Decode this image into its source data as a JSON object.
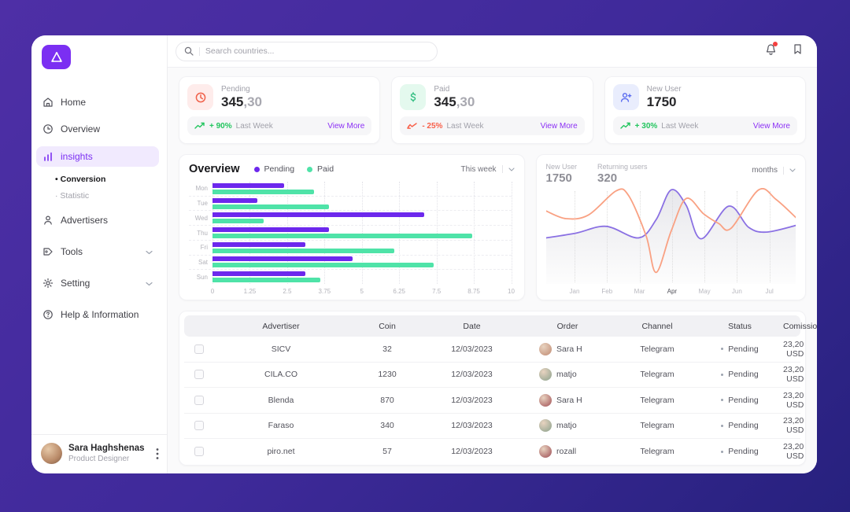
{
  "topbar": {
    "search_placeholder": "Search countries...",
    "icons": [
      "bell-icon",
      "bookmark-icon"
    ]
  },
  "sidebar": {
    "items": [
      {
        "label": "Home"
      },
      {
        "label": "Overview"
      },
      {
        "label": "insights",
        "active": true
      },
      {
        "label": "Advertisers"
      },
      {
        "label": "Tools",
        "expandable": true
      },
      {
        "label": "Setting",
        "expandable": true
      },
      {
        "label": "Help & Information"
      }
    ],
    "sub_items": [
      {
        "label": "Conversion",
        "bullet": "•",
        "active": true
      },
      {
        "label": "Statistic",
        "bullet": "·",
        "active": false
      }
    ],
    "profile": {
      "name": "Sara Haghshenas",
      "role": "Product Designer"
    }
  },
  "stat_cards": [
    {
      "label": "Pending",
      "value_main": "345",
      "value_decimal": ",30",
      "trend": "+ 90%",
      "trend_dir": "up",
      "period": "Last Week",
      "action": "View More"
    },
    {
      "label": "Paid",
      "value_main": "345",
      "value_decimal": ",30",
      "trend": "- 25%",
      "trend_dir": "down",
      "period": "Last Week",
      "action": "View More"
    },
    {
      "label": "New User",
      "value_main": "1750",
      "value_decimal": "",
      "trend": "+ 30%",
      "trend_dir": "up",
      "period": "Last Week",
      "action": "View More"
    }
  ],
  "chart_data": [
    {
      "type": "bar",
      "orientation": "horizontal",
      "title": "Overview",
      "categories": [
        "Mon",
        "Tue",
        "Wed",
        "Thu",
        "Fri",
        "Sat",
        "Sun"
      ],
      "series": [
        {
          "name": "Pending",
          "color": "#6d28ed",
          "values": [
            2.4,
            1.5,
            7.1,
            3.9,
            3.1,
            4.7,
            3.1
          ]
        },
        {
          "name": "Paid",
          "color": "#4fe3a8",
          "values": [
            3.4,
            3.9,
            1.7,
            8.7,
            6.1,
            7.4,
            3.6
          ]
        }
      ],
      "xlim": [
        0,
        10
      ],
      "x_ticks": [
        "0",
        "1.25",
        "2.5",
        "3.75",
        "5",
        "6.25",
        "7.5",
        "8.75",
        "10"
      ],
      "grid": "dotted",
      "period_selector": "This week"
    },
    {
      "type": "line",
      "stats": [
        {
          "label": "New User",
          "value": "1750"
        },
        {
          "label": "Returning users",
          "value": "320"
        }
      ],
      "x_labels": [
        "Jan",
        "Feb",
        "Mar",
        "Apr",
        "May",
        "Jun",
        "Jul"
      ],
      "highlight_label": "Apr",
      "period_selector": "months",
      "series": [
        {
          "name": "New User",
          "color": "#8a70e3",
          "fill": "gray-gradient",
          "points": [
            [
              0,
              52
            ],
            [
              12,
              47
            ],
            [
              24,
              40
            ],
            [
              37,
              52
            ],
            [
              44,
              33
            ],
            [
              50,
              2
            ],
            [
              56,
              18
            ],
            [
              62,
              53
            ],
            [
              73,
              19
            ],
            [
              81,
              41
            ],
            [
              88,
              46
            ],
            [
              100,
              39
            ]
          ]
        },
        {
          "name": "Returning users",
          "color": "#f9a183",
          "fill": "none",
          "points": [
            [
              0,
              24
            ],
            [
              8,
              32
            ],
            [
              17,
              28
            ],
            [
              28,
              3
            ],
            [
              33,
              8
            ],
            [
              40,
              50
            ],
            [
              44,
              88
            ],
            [
              50,
              45
            ],
            [
              56,
              11
            ],
            [
              63,
              27
            ],
            [
              69,
              37
            ],
            [
              74,
              42
            ],
            [
              85,
              2
            ],
            [
              92,
              12
            ],
            [
              100,
              31
            ]
          ]
        }
      ]
    }
  ],
  "table": {
    "headers": [
      "Advertiser",
      "Coin",
      "Date",
      "Order",
      "Channel",
      "Status",
      "Comission"
    ],
    "rows": [
      {
        "advertiser": "SICV",
        "coin": "32",
        "date": "12/03/2023",
        "order": "Sara H",
        "avatar_color": "#c08a72",
        "channel": "Telegram",
        "status": "Pending",
        "commission": "23,20 USD"
      },
      {
        "advertiser": "CILA.CO",
        "coin": "1230",
        "date": "12/03/2023",
        "order": "matjo",
        "avatar_color": "#8aa18c",
        "channel": "Telegram",
        "status": "Pending",
        "commission": "23,20 USD"
      },
      {
        "advertiser": "Blenda",
        "coin": "870",
        "date": "12/03/2023",
        "order": "Sara H",
        "avatar_color": "#a14e54",
        "channel": "Telegram",
        "status": "Pending",
        "commission": "23,20 USD"
      },
      {
        "advertiser": "Faraso",
        "coin": "340",
        "date": "12/03/2023",
        "order": "matjo",
        "avatar_color": "#8aa18c",
        "channel": "Telegram",
        "status": "Pending",
        "commission": "23,20 USD"
      },
      {
        "advertiser": "piro.net",
        "coin": "57",
        "date": "12/03/2023",
        "order": "rozall",
        "avatar_color": "#9c4a52",
        "channel": "Telegram",
        "status": "Pending",
        "commission": "23,20 USD"
      }
    ]
  }
}
